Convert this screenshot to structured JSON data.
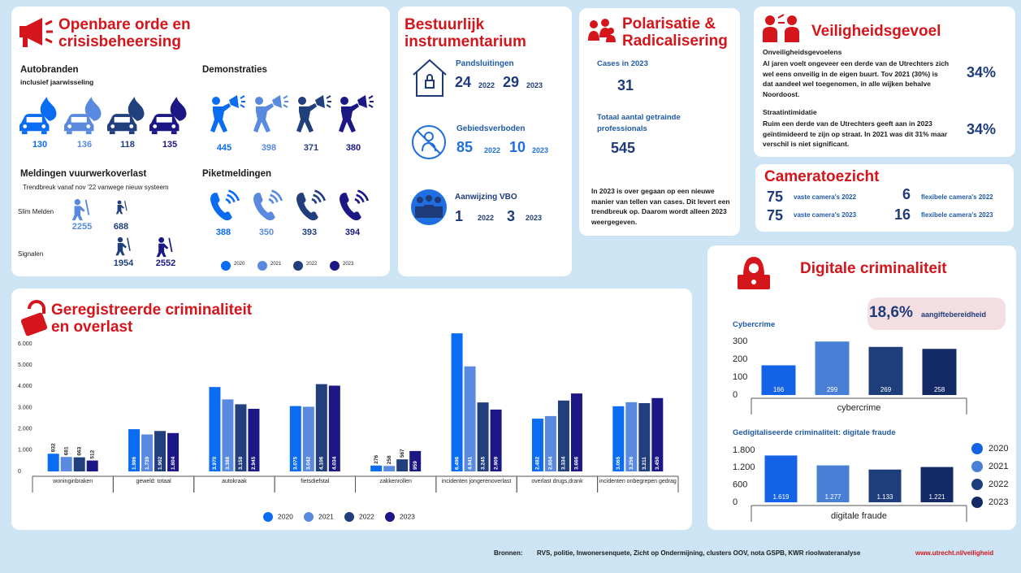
{
  "openbare_orde": {
    "title": "Openbare orde en crisisbeheersing",
    "autobranden": {
      "title": "Autobranden",
      "subtitle": "inclusief jaarwisseling",
      "values": [
        130,
        136,
        118,
        135
      ]
    },
    "demonstraties": {
      "title": "Demonstraties",
      "values": [
        445,
        398,
        371,
        380
      ]
    },
    "vuurwerk": {
      "title": "Meldingen vuurwerkoverlast",
      "subtitle": "Trendbreuk vanaf nov '22 vanwege nieuw systeem",
      "rows": [
        {
          "label": "Slim Melden",
          "values": [
            2255,
            688
          ]
        },
        {
          "label": "Signalen",
          "values": [
            1954,
            2552
          ]
        }
      ]
    },
    "piket": {
      "title": "Piketmeldingen",
      "values": [
        388,
        350,
        393,
        394
      ]
    },
    "legend": [
      "2020",
      "2021",
      "2022",
      "2023"
    ]
  },
  "bestuurlijk": {
    "title": "Bestuurlijk instrumentarium",
    "items": [
      {
        "label": "Pandsluitingen",
        "values": [
          24,
          29
        ],
        "years": [
          "2022",
          "2023"
        ]
      },
      {
        "label": "Gebiedsverboden",
        "values": [
          85,
          10
        ],
        "years": [
          "2022",
          "2023"
        ]
      },
      {
        "label": "Aanwijzing VBO",
        "values": [
          1,
          3
        ],
        "years": [
          "2022",
          "2023"
        ]
      }
    ]
  },
  "polarisatie": {
    "title": "Polarisatie & Radicalisering",
    "items": [
      {
        "label": "Cases in 2023",
        "value": 31
      },
      {
        "label": "Totaal aantal getrainde professionals",
        "value": 545
      }
    ],
    "note": "In 2023 is over gegaan op een nieuwe manier van tellen van cases. Dit levert een trendbreuk op. Daarom wordt alleen 2023 weergegeven."
  },
  "veiligheidsgevoel": {
    "title": "Veiligheidsgevoel",
    "items": [
      {
        "heading": "Onveiligheidsgevoelens",
        "text": "Al jaren voelt ongeveer een derde van de Utrechters zich wel eens onveilig in de eigen buurt. Tov 2021 (30%) is dat aandeel wel toegenomen, in alle wijken behalve Noordoost.",
        "value": "34%"
      },
      {
        "heading": "Straatintimidatie",
        "text": "Ruim een derde van de Utrechters geeft aan in 2023 geïntimideerd te zijn op straat. In 2021 was dit 31% maar verschil is niet significant.",
        "value": "34%"
      }
    ]
  },
  "cameratoezicht": {
    "title": "Cameratoezicht",
    "items": [
      {
        "value": 75,
        "label": "vaste camera's 2022"
      },
      {
        "value": 6,
        "label": "flexibele camera's 2022"
      },
      {
        "value": 75,
        "label": "vaste camera's 2023"
      },
      {
        "value": 16,
        "label": "flexibele camera's 2023"
      }
    ]
  },
  "digitaal": {
    "title": "Digitale criminaliteit",
    "badge_value": "18,6%",
    "badge_label": "aangiftebereidheid"
  },
  "footer": {
    "label": "Bronnen:",
    "sources": "RVS, politie, Inwonersenquete, Zicht op Ondermijning, clusters OOV, nota GSPB, KWR rioolwateranalyse",
    "url": "www.utrecht.nl/veiligheid"
  },
  "chart_data": [
    {
      "type": "bar",
      "title": "Geregistreerde criminaliteit en overlast",
      "categories": [
        "woninginbraken",
        "geweld: totaal",
        "autokraak",
        "fietsdiefstal",
        "zakkenrollen",
        "incidenten jongerenoverlast",
        "overlast drugs,drank",
        "incidenten onbegrepen gedrag"
      ],
      "series": [
        {
          "name": "2020",
          "color": "#0a6cf2",
          "values": [
            832,
            1986,
            3970,
            3075,
            276,
            6496,
            2482,
            3065
          ],
          "value_labels": [
            "832",
            "1.986",
            "3.970",
            "3.075",
            "276",
            "6.496",
            "2.482",
            "3.065"
          ]
        },
        {
          "name": "2021",
          "color": "#5a8ae0",
          "values": [
            681,
            1739,
            3388,
            3042,
            258,
            4941,
            2604,
            3256
          ],
          "value_labels": [
            "681",
            "1.739",
            "3.388",
            "3.042",
            "258",
            "4.941",
            "2.604",
            "3.256"
          ]
        },
        {
          "name": "2022",
          "color": "#213f7c",
          "values": [
            663,
            1902,
            3158,
            4106,
            567,
            3245,
            3334,
            3211
          ],
          "value_labels": [
            "663",
            "1.902",
            "3.158",
            "4.106",
            "567",
            "3.245",
            "3.334",
            "3.211"
          ]
        },
        {
          "name": "2023",
          "color": "#1b1784",
          "values": [
            512,
            1804,
            2945,
            4034,
            959,
            2909,
            3666,
            3450
          ],
          "value_labels": [
            "512",
            "1.804",
            "2.945",
            "4.034",
            "959",
            "2.909",
            "3.666",
            "3.450"
          ]
        }
      ],
      "ylim": [
        0,
        6500
      ],
      "yticks": [
        0,
        {
          "value": 1000,
          "label": "1.000"
        },
        {
          "value": 2000,
          "label": "2.000"
        },
        {
          "value": 3000,
          "label": "3.000"
        },
        {
          "value": 4000,
          "label": "4.000"
        },
        {
          "value": 5000,
          "label": "5.000"
        },
        {
          "value": 6000,
          "label": "6.000"
        }
      ],
      "legend": "bottom"
    },
    {
      "type": "bar",
      "title": "Cybercrime",
      "categories": [
        "cybercrime"
      ],
      "series": [
        {
          "color": "#1462e6",
          "values": [
            166
          ]
        },
        {
          "color": "#4a7fd6",
          "values": [
            299
          ]
        },
        {
          "color": "#1e3d7b",
          "values": [
            269
          ]
        },
        {
          "color": "#142a66",
          "values": [
            258
          ]
        }
      ],
      "ylim": [
        0,
        300
      ],
      "yticks": [
        0,
        100,
        200,
        300
      ]
    },
    {
      "type": "bar",
      "title": "Gedigitaliseerde criminaliteit: digitale fraude",
      "categories": [
        "digitale fraude"
      ],
      "series": [
        {
          "name": "2020",
          "color": "#1462e6",
          "values": [
            1619
          ],
          "value_labels": [
            "1.619"
          ]
        },
        {
          "name": "2021",
          "color": "#4a7fd6",
          "values": [
            1277
          ],
          "value_labels": [
            "1.277"
          ]
        },
        {
          "name": "2022",
          "color": "#1e3d7b",
          "values": [
            1133
          ],
          "value_labels": [
            "1.133"
          ]
        },
        {
          "name": "2023",
          "color": "#142a66",
          "values": [
            1221
          ],
          "value_labels": [
            "1.221"
          ]
        }
      ],
      "ylim": [
        0,
        1800
      ],
      "yticks": [
        0,
        600,
        {
          "value": 1200,
          "label": "1.200"
        },
        {
          "value": 1800,
          "label": "1.800"
        }
      ],
      "legend": "right"
    }
  ]
}
